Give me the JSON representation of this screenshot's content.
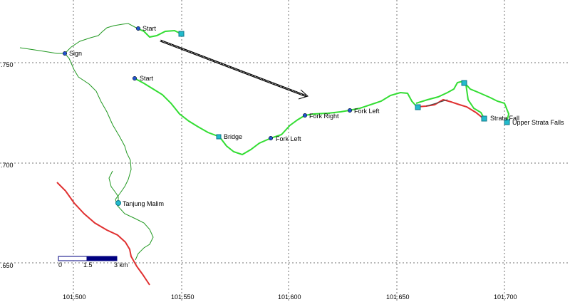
{
  "map": {
    "lat_ticks": [
      {
        "label": ".750"
      },
      {
        "label": ".700"
      },
      {
        "label": ".650"
      }
    ],
    "lon_ticks": [
      {
        "label": "101.500"
      },
      {
        "label": "101.550"
      },
      {
        "label": "101.600"
      },
      {
        "label": "101.650"
      },
      {
        "label": "101.700"
      }
    ],
    "scale_bar": {
      "labels": [
        "0",
        "1.5",
        "3 km"
      ]
    },
    "colors": {
      "grid": "#707070",
      "active_track": "#33dd33",
      "trail": "#229922",
      "road": "#e03030",
      "waypoint": "#2255cc",
      "marker": "#22bbcc"
    },
    "waypoints": [
      {
        "label": "Sign"
      },
      {
        "label": "Start"
      },
      {
        "label": "Start"
      },
      {
        "label": "Bridge"
      },
      {
        "label": "Fork Left"
      },
      {
        "label": "Fork Right"
      },
      {
        "label": "Fork Left"
      },
      {
        "label": "Strata Fall"
      },
      {
        "label": "Upper Strata Falls"
      },
      {
        "label": "Tanjung Malim"
      }
    ]
  }
}
